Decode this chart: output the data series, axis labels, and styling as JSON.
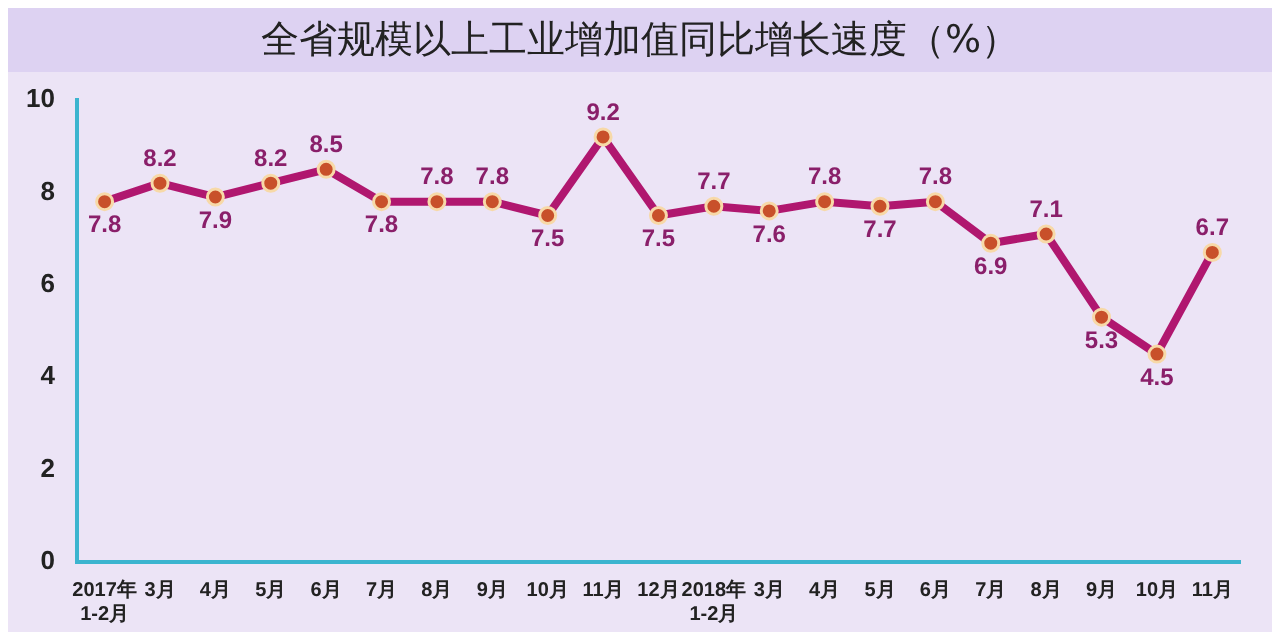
{
  "chart_data": {
    "type": "line",
    "title": "全省规模以上工业增加值同比增长速度（%）",
    "categories": [
      "2017年1-2月",
      "3月",
      "4月",
      "5月",
      "6月",
      "7月",
      "8月",
      "9月",
      "10月",
      "11月",
      "12月",
      "2018年1-2月",
      "3月",
      "4月",
      "5月",
      "6月",
      "7月",
      "8月",
      "9月",
      "10月",
      "11月"
    ],
    "series": [
      {
        "color": "#b0176f",
        "values": [
          7.8,
          8.2,
          7.9,
          8.2,
          8.5,
          7.8,
          7.8,
          7.8,
          7.5,
          9.2,
          7.5,
          7.7,
          7.6,
          7.8,
          7.7,
          7.8,
          6.9,
          7.1,
          5.3,
          4.5,
          6.7
        ]
      }
    ],
    "ylim": [
      0,
      10
    ],
    "yticks": [
      0,
      2,
      4,
      6,
      8,
      10
    ],
    "grid": false,
    "legend": false,
    "marker": "circle",
    "line_style": "solid",
    "data_labels": true
  }
}
